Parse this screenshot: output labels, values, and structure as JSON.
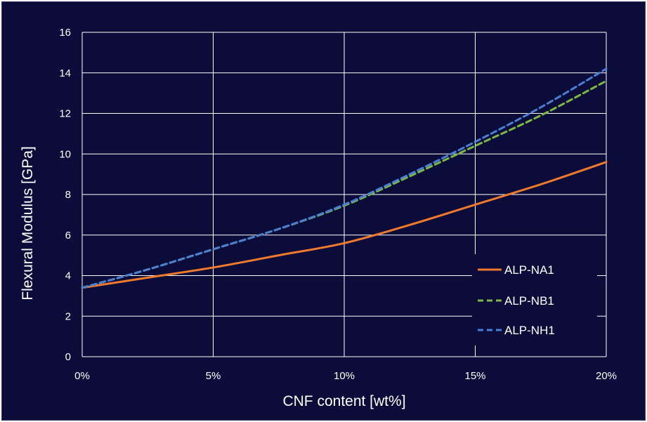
{
  "chart_data": {
    "type": "line",
    "title": "",
    "xlabel": "CNF content [wt%]",
    "ylabel": "Flexural Modulus [GPa]",
    "xlim": [
      0,
      20
    ],
    "ylim": [
      0,
      16
    ],
    "x_ticks": [
      0,
      5,
      10,
      15,
      20
    ],
    "x_tick_labels": [
      "0%",
      "5%",
      "10%",
      "15%",
      "20%"
    ],
    "y_ticks": [
      0,
      2,
      4,
      6,
      8,
      10,
      12,
      14,
      16
    ],
    "y_tick_labels": [
      "0",
      "2",
      "4",
      "6",
      "8",
      "10",
      "12",
      "14",
      "16"
    ],
    "grid": true,
    "legend_position": "bottom-right",
    "x": [
      0,
      2.5,
      5,
      7.5,
      10,
      12.5,
      15,
      17.5,
      20
    ],
    "series": [
      {
        "name": "ALP-NA1",
        "values": [
          3.4,
          3.9,
          4.4,
          5.0,
          5.6,
          6.5,
          7.5,
          8.5,
          9.6
        ],
        "color": "#f07a2c",
        "dash": "solid"
      },
      {
        "name": "ALP-NB1",
        "values": [
          3.4,
          4.3,
          5.3,
          6.3,
          7.45,
          8.9,
          10.4,
          11.9,
          13.6
        ],
        "color": "#7db842",
        "dash": "dashed"
      },
      {
        "name": "ALP-NH1",
        "values": [
          3.4,
          4.3,
          5.3,
          6.3,
          7.5,
          9.0,
          10.6,
          12.3,
          14.2
        ],
        "color": "#4a7fd4",
        "dash": "dashed"
      }
    ]
  }
}
